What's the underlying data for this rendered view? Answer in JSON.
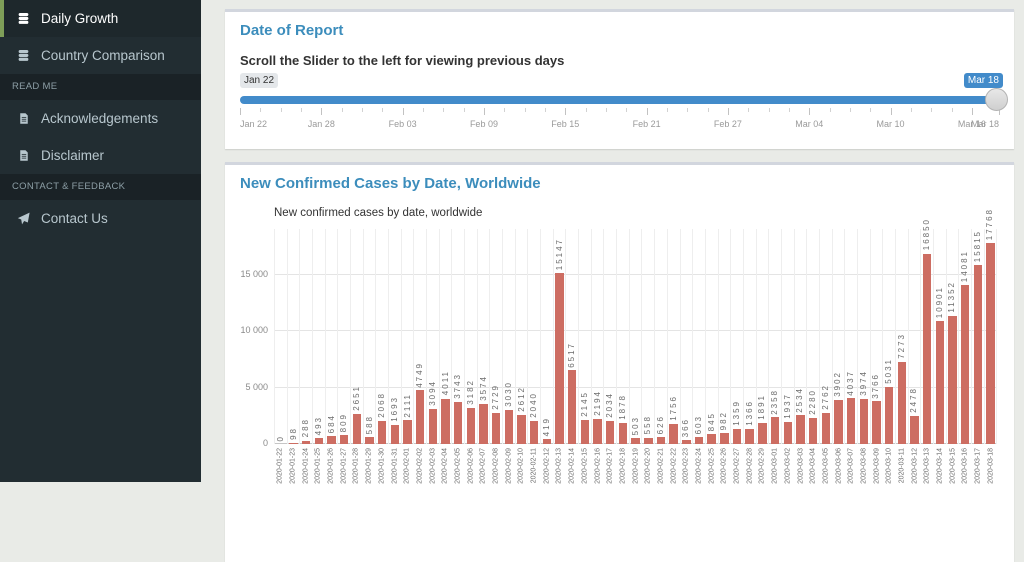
{
  "sidebar": {
    "items": [
      {
        "type": "item",
        "label": "Daily Growth",
        "icon": "database-icon",
        "active": true
      },
      {
        "type": "item",
        "label": "Country Comparison",
        "icon": "database-icon",
        "active": false
      },
      {
        "type": "header",
        "label": "READ ME"
      },
      {
        "type": "item",
        "label": "Acknowledgements",
        "icon": "file-icon",
        "active": false
      },
      {
        "type": "item",
        "label": "Disclaimer",
        "icon": "file-icon",
        "active": false
      },
      {
        "type": "header",
        "label": "CONTACT & FEEDBACK"
      },
      {
        "type": "item",
        "label": "Contact Us",
        "icon": "paper-plane-icon",
        "active": false
      }
    ]
  },
  "date_card": {
    "title": "Date of Report",
    "instruction": "Scroll the Slider to the left for viewing previous days",
    "slider": {
      "min_label": "Jan 22",
      "value_label": "Mar 18",
      "range_days": 56,
      "ticks": [
        {
          "label": "Jan 22",
          "day": 0
        },
        {
          "label": "Jan 28",
          "day": 6
        },
        {
          "label": "Feb 03",
          "day": 12
        },
        {
          "label": "Feb 09",
          "day": 18
        },
        {
          "label": "Feb 15",
          "day": 24
        },
        {
          "label": "Feb 21",
          "day": 30
        },
        {
          "label": "Feb 27",
          "day": 36
        },
        {
          "label": "Mar 04",
          "day": 42
        },
        {
          "label": "Mar 10",
          "day": 48
        },
        {
          "label": "Mar 16",
          "day": 54
        },
        {
          "label": "Mar 18",
          "day": 56
        }
      ]
    }
  },
  "chart_card": {
    "title": "New Confirmed Cases by Date, Worldwide"
  },
  "chart_data": {
    "type": "bar",
    "title": "New confirmed cases by date, worldwide",
    "categories": [
      "2020-01-22",
      "2020-01-23",
      "2020-01-24",
      "2020-01-25",
      "2020-01-26",
      "2020-01-27",
      "2020-01-28",
      "2020-01-29",
      "2020-01-30",
      "2020-01-31",
      "2020-02-01",
      "2020-02-02",
      "2020-02-03",
      "2020-02-04",
      "2020-02-05",
      "2020-02-06",
      "2020-02-07",
      "2020-02-08",
      "2020-02-09",
      "2020-02-10",
      "2020-02-11",
      "2020-02-12",
      "2020-02-13",
      "2020-02-14",
      "2020-02-15",
      "2020-02-16",
      "2020-02-17",
      "2020-02-18",
      "2020-02-19",
      "2020-02-20",
      "2020-02-21",
      "2020-02-22",
      "2020-02-23",
      "2020-02-24",
      "2020-02-25",
      "2020-02-26",
      "2020-02-27",
      "2020-02-28",
      "2020-02-29",
      "2020-03-01",
      "2020-03-02",
      "2020-03-03",
      "2020-03-04",
      "2020-03-05",
      "2020-03-06",
      "2020-03-07",
      "2020-03-08",
      "2020-03-09",
      "2020-03-10",
      "2020-03-11",
      "2020-03-12",
      "2020-03-13",
      "2020-03-14",
      "2020-03-15",
      "2020-03-16",
      "2020-03-17",
      "2020-03-18"
    ],
    "values": [
      0,
      98,
      288,
      493,
      684,
      809,
      2651,
      588,
      2068,
      1693,
      2111,
      4749,
      3094,
      4011,
      3743,
      3182,
      3574,
      2729,
      3030,
      2612,
      2040,
      419,
      15147,
      6517,
      2145,
      2194,
      2034,
      1878,
      503,
      558,
      626,
      1756,
      366,
      603,
      845,
      982,
      1359,
      1366,
      1891,
      2358,
      1937,
      2534,
      2280,
      2762,
      3902,
      4037,
      3974,
      3766,
      5031,
      7273,
      2478,
      16850,
      10901,
      11352,
      14081,
      15815,
      17768
    ],
    "xlabel": "",
    "ylabel": "",
    "ylim": [
      0,
      19000
    ],
    "yticks": [
      0,
      5000,
      10000,
      15000
    ],
    "ytick_labels": [
      "0",
      "5 000",
      "10 000",
      "15 000"
    ],
    "grid": true,
    "legend": false
  },
  "colors": {
    "accent_blue": "#3c8dbc",
    "slider_blue": "#428bca",
    "bar": "#cd6d62",
    "sidebar_bg": "#222d32",
    "sidebar_active_border": "#7e9e58",
    "content_bg": "#e9ebe7"
  }
}
